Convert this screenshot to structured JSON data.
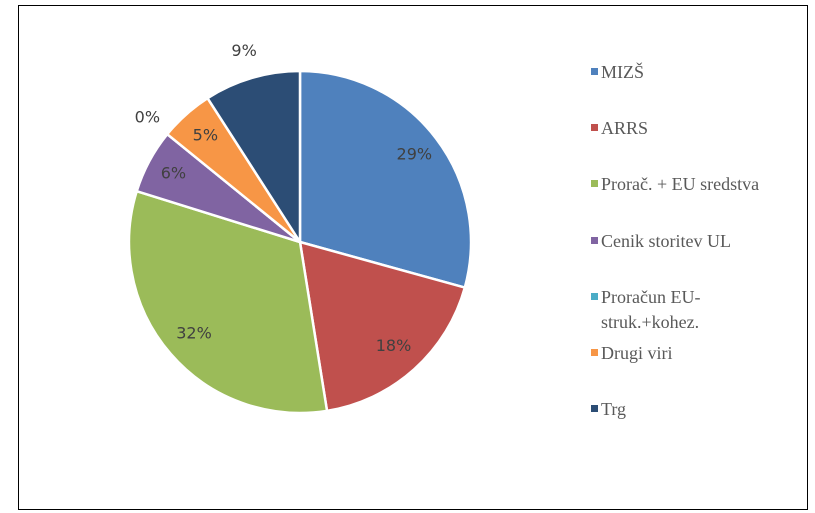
{
  "chart_data": {
    "type": "pie",
    "categories": [
      "MIZŠ",
      "ARRS",
      "Prorač. + EU sredstva",
      "Cenik storitev UL",
      "Proračun EU-struk.+kohez.",
      "Drugi viri",
      "Trg"
    ],
    "values": [
      29,
      18,
      32,
      6,
      0,
      5,
      9
    ],
    "value_labels": [
      "29%",
      "18%",
      "32%",
      "6%",
      "0%",
      "5%",
      "9%"
    ],
    "colors": [
      "#4f81bd",
      "#c0504d",
      "#9bbb59",
      "#8064a2",
      "#4bacc6",
      "#f79646",
      "#2c4d75"
    ],
    "legend": "right"
  }
}
